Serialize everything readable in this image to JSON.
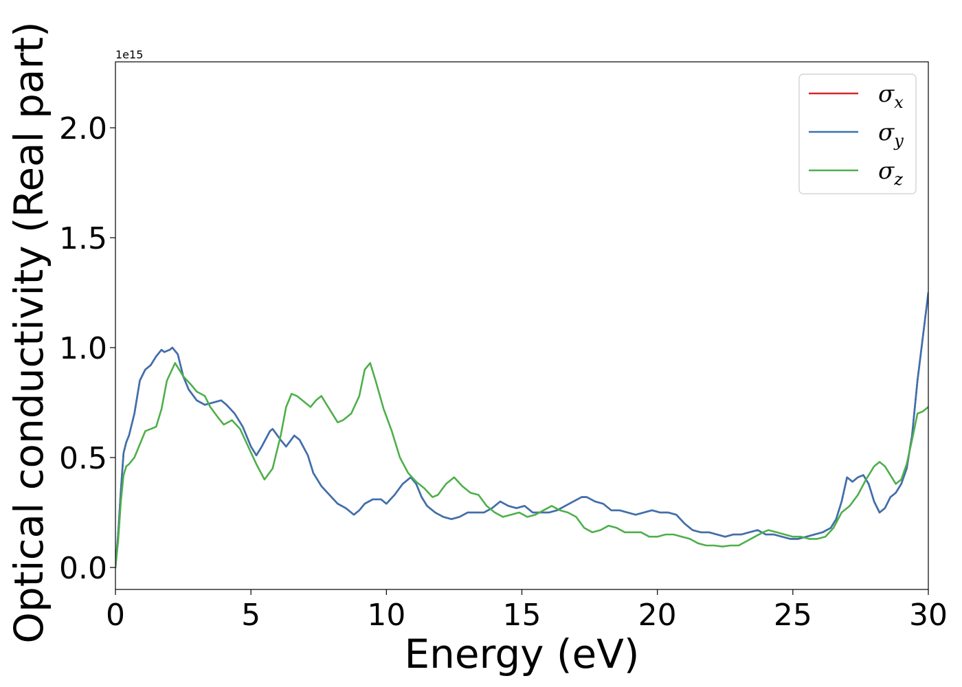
{
  "chart_data": {
    "type": "line",
    "title": "",
    "xlabel": "Energy (eV)",
    "ylabel": "Optical conductivity (Real part)",
    "y_offset_label": "1e15",
    "xlim": [
      0,
      30
    ],
    "ylim": [
      -0.1,
      2.3
    ],
    "xticks": [
      0,
      5,
      10,
      15,
      20,
      25,
      30
    ],
    "yticks": [
      0.0,
      0.5,
      1.0,
      1.5,
      2.0
    ],
    "xtick_labels": [
      "0",
      "5",
      "10",
      "15",
      "20",
      "25",
      "30"
    ],
    "ytick_labels": [
      "0.0",
      "0.5",
      "1.0",
      "1.5",
      "2.0"
    ],
    "grid": false,
    "legend_position": "top-right",
    "series": [
      {
        "name": "σ",
        "sub": "x",
        "color": "#d62728",
        "x": [
          0,
          0.1,
          0.2,
          0.3,
          0.4,
          0.5,
          0.7,
          0.9,
          1.1,
          1.3,
          1.5,
          1.7,
          1.8,
          2.0,
          2.1,
          2.3,
          2.5,
          2.7,
          3.0,
          3.3,
          3.6,
          3.9,
          4.1,
          4.4,
          4.7,
          5.0,
          5.2,
          5.4,
          5.7,
          5.8,
          6.1,
          6.3,
          6.6,
          6.8,
          7.1,
          7.3,
          7.6,
          7.9,
          8.2,
          8.5,
          8.8,
          9.0,
          9.2,
          9.5,
          9.8,
          10.0,
          10.3,
          10.6,
          10.9,
          11.1,
          11.3,
          11.5,
          11.8,
          12.1,
          12.4,
          12.7,
          13.0,
          13.3,
          13.6,
          13.9,
          14.2,
          14.5,
          14.8,
          15.1,
          15.4,
          15.7,
          16.0,
          16.3,
          16.6,
          16.9,
          17.2,
          17.4,
          17.7,
          18.0,
          18.3,
          18.6,
          18.9,
          19.2,
          19.5,
          19.8,
          20.1,
          20.4,
          20.7,
          21.0,
          21.3,
          21.6,
          21.9,
          22.2,
          22.5,
          22.8,
          23.1,
          23.4,
          23.7,
          24.0,
          24.3,
          24.6,
          24.9,
          25.2,
          25.5,
          25.8,
          26.1,
          26.4,
          26.6,
          26.8,
          27.0,
          27.2,
          27.4,
          27.6,
          27.8,
          28.0,
          28.2,
          28.4,
          28.6,
          28.8,
          29.0,
          29.2,
          29.4,
          29.6,
          29.8,
          30.0
        ],
        "y": [
          0,
          0.15,
          0.35,
          0.52,
          0.57,
          0.6,
          0.7,
          0.85,
          0.9,
          0.92,
          0.96,
          0.99,
          0.98,
          0.99,
          1.0,
          0.97,
          0.87,
          0.81,
          0.76,
          0.74,
          0.75,
          0.76,
          0.74,
          0.7,
          0.64,
          0.55,
          0.51,
          0.55,
          0.62,
          0.63,
          0.58,
          0.55,
          0.6,
          0.58,
          0.51,
          0.43,
          0.37,
          0.33,
          0.29,
          0.27,
          0.24,
          0.26,
          0.29,
          0.31,
          0.31,
          0.29,
          0.33,
          0.38,
          0.41,
          0.38,
          0.32,
          0.28,
          0.25,
          0.23,
          0.22,
          0.23,
          0.25,
          0.25,
          0.25,
          0.27,
          0.3,
          0.28,
          0.27,
          0.28,
          0.25,
          0.25,
          0.25,
          0.26,
          0.28,
          0.3,
          0.32,
          0.32,
          0.3,
          0.29,
          0.26,
          0.26,
          0.25,
          0.24,
          0.25,
          0.26,
          0.25,
          0.25,
          0.24,
          0.2,
          0.17,
          0.16,
          0.16,
          0.15,
          0.14,
          0.15,
          0.15,
          0.16,
          0.17,
          0.15,
          0.15,
          0.14,
          0.13,
          0.13,
          0.14,
          0.15,
          0.16,
          0.18,
          0.22,
          0.3,
          0.41,
          0.39,
          0.41,
          0.42,
          0.38,
          0.3,
          0.25,
          0.27,
          0.32,
          0.34,
          0.38,
          0.45,
          0.6,
          0.85,
          1.05,
          1.25
        ]
      },
      {
        "name": "σ",
        "sub": "y",
        "color": "#3a72b0",
        "x": [
          0,
          0.1,
          0.2,
          0.3,
          0.4,
          0.5,
          0.7,
          0.9,
          1.1,
          1.3,
          1.5,
          1.7,
          1.8,
          2.0,
          2.1,
          2.3,
          2.5,
          2.7,
          3.0,
          3.3,
          3.6,
          3.9,
          4.1,
          4.4,
          4.7,
          5.0,
          5.2,
          5.4,
          5.7,
          5.8,
          6.1,
          6.3,
          6.6,
          6.8,
          7.1,
          7.3,
          7.6,
          7.9,
          8.2,
          8.5,
          8.8,
          9.0,
          9.2,
          9.5,
          9.8,
          10.0,
          10.3,
          10.6,
          10.9,
          11.1,
          11.3,
          11.5,
          11.8,
          12.1,
          12.4,
          12.7,
          13.0,
          13.3,
          13.6,
          13.9,
          14.2,
          14.5,
          14.8,
          15.1,
          15.4,
          15.7,
          16.0,
          16.3,
          16.6,
          16.9,
          17.2,
          17.4,
          17.7,
          18.0,
          18.3,
          18.6,
          18.9,
          19.2,
          19.5,
          19.8,
          20.1,
          20.4,
          20.7,
          21.0,
          21.3,
          21.6,
          21.9,
          22.2,
          22.5,
          22.8,
          23.1,
          23.4,
          23.7,
          24.0,
          24.3,
          24.6,
          24.9,
          25.2,
          25.5,
          25.8,
          26.1,
          26.4,
          26.6,
          26.8,
          27.0,
          27.2,
          27.4,
          27.6,
          27.8,
          28.0,
          28.2,
          28.4,
          28.6,
          28.8,
          29.0,
          29.2,
          29.4,
          29.6,
          29.8,
          30.0
        ],
        "y": [
          0,
          0.15,
          0.35,
          0.52,
          0.57,
          0.6,
          0.7,
          0.85,
          0.9,
          0.92,
          0.96,
          0.99,
          0.98,
          0.99,
          1.0,
          0.97,
          0.87,
          0.81,
          0.76,
          0.74,
          0.75,
          0.76,
          0.74,
          0.7,
          0.64,
          0.55,
          0.51,
          0.55,
          0.62,
          0.63,
          0.58,
          0.55,
          0.6,
          0.58,
          0.51,
          0.43,
          0.37,
          0.33,
          0.29,
          0.27,
          0.24,
          0.26,
          0.29,
          0.31,
          0.31,
          0.29,
          0.33,
          0.38,
          0.41,
          0.38,
          0.32,
          0.28,
          0.25,
          0.23,
          0.22,
          0.23,
          0.25,
          0.25,
          0.25,
          0.27,
          0.3,
          0.28,
          0.27,
          0.28,
          0.25,
          0.25,
          0.25,
          0.26,
          0.28,
          0.3,
          0.32,
          0.32,
          0.3,
          0.29,
          0.26,
          0.26,
          0.25,
          0.24,
          0.25,
          0.26,
          0.25,
          0.25,
          0.24,
          0.2,
          0.17,
          0.16,
          0.16,
          0.15,
          0.14,
          0.15,
          0.15,
          0.16,
          0.17,
          0.15,
          0.15,
          0.14,
          0.13,
          0.13,
          0.14,
          0.15,
          0.16,
          0.18,
          0.22,
          0.3,
          0.41,
          0.39,
          0.41,
          0.42,
          0.38,
          0.3,
          0.25,
          0.27,
          0.32,
          0.34,
          0.38,
          0.45,
          0.6,
          0.85,
          1.05,
          1.25
        ]
      },
      {
        "name": "σ",
        "sub": "z",
        "color": "#4daf4a",
        "x": [
          0,
          0.1,
          0.2,
          0.3,
          0.4,
          0.5,
          0.7,
          0.9,
          1.1,
          1.3,
          1.5,
          1.7,
          1.9,
          2.2,
          2.5,
          2.8,
          3.0,
          3.3,
          3.5,
          3.8,
          4.0,
          4.3,
          4.6,
          4.9,
          5.2,
          5.5,
          5.8,
          6.1,
          6.3,
          6.5,
          6.7,
          7.0,
          7.2,
          7.4,
          7.6,
          7.9,
          8.2,
          8.4,
          8.7,
          9.0,
          9.2,
          9.4,
          9.6,
          9.9,
          10.2,
          10.5,
          10.8,
          11.1,
          11.4,
          11.7,
          11.9,
          12.2,
          12.5,
          12.8,
          13.1,
          13.4,
          13.7,
          14.0,
          14.3,
          14.6,
          14.9,
          15.2,
          15.5,
          15.8,
          16.1,
          16.4,
          16.7,
          17.0,
          17.3,
          17.6,
          17.9,
          18.2,
          18.5,
          18.8,
          19.1,
          19.4,
          19.7,
          20.0,
          20.3,
          20.6,
          20.9,
          21.2,
          21.5,
          21.8,
          22.1,
          22.4,
          22.7,
          23.0,
          23.3,
          23.6,
          23.9,
          24.1,
          24.4,
          24.7,
          25.0,
          25.3,
          25.6,
          25.9,
          26.2,
          26.5,
          26.8,
          27.1,
          27.4,
          27.7,
          28.0,
          28.2,
          28.4,
          28.6,
          28.8,
          29.0,
          29.2,
          29.4,
          29.6,
          29.8,
          30.0
        ],
        "y": [
          0,
          0.12,
          0.3,
          0.42,
          0.46,
          0.47,
          0.5,
          0.56,
          0.62,
          0.63,
          0.64,
          0.72,
          0.85,
          0.93,
          0.87,
          0.83,
          0.8,
          0.78,
          0.73,
          0.68,
          0.65,
          0.67,
          0.63,
          0.55,
          0.47,
          0.4,
          0.45,
          0.6,
          0.73,
          0.79,
          0.78,
          0.75,
          0.73,
          0.76,
          0.78,
          0.72,
          0.66,
          0.67,
          0.7,
          0.78,
          0.9,
          0.93,
          0.85,
          0.72,
          0.62,
          0.5,
          0.43,
          0.39,
          0.36,
          0.32,
          0.33,
          0.38,
          0.41,
          0.37,
          0.34,
          0.33,
          0.28,
          0.25,
          0.23,
          0.24,
          0.25,
          0.23,
          0.24,
          0.26,
          0.28,
          0.26,
          0.25,
          0.23,
          0.18,
          0.16,
          0.17,
          0.19,
          0.18,
          0.16,
          0.16,
          0.16,
          0.14,
          0.14,
          0.15,
          0.15,
          0.14,
          0.13,
          0.11,
          0.1,
          0.1,
          0.095,
          0.1,
          0.1,
          0.12,
          0.14,
          0.16,
          0.17,
          0.16,
          0.15,
          0.14,
          0.14,
          0.13,
          0.13,
          0.14,
          0.18,
          0.25,
          0.28,
          0.33,
          0.4,
          0.46,
          0.48,
          0.46,
          0.42,
          0.38,
          0.4,
          0.47,
          0.58,
          0.7,
          0.71,
          0.73
        ]
      }
    ]
  }
}
